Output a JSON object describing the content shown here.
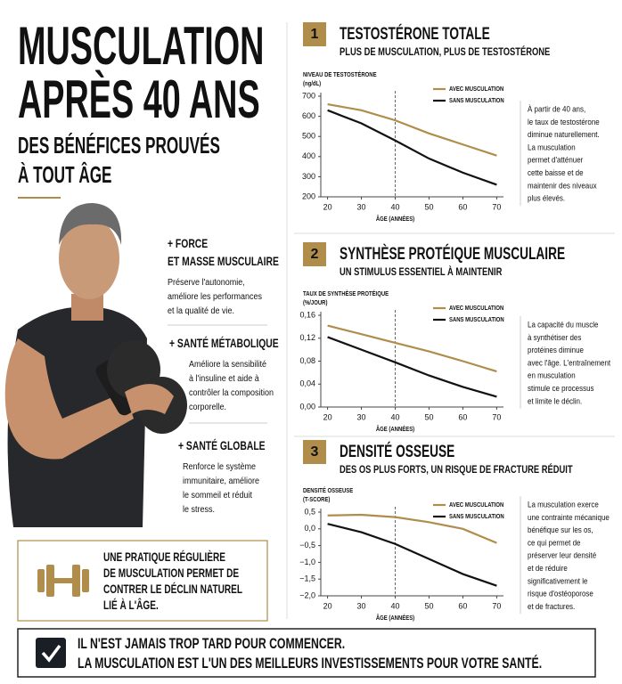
{
  "header": {
    "title_lines": [
      "MUSCULATION",
      "APRÈS 40 ANS"
    ],
    "subtitle_lines": [
      "DES BÉNÉFICES PROUVÉS",
      "À TOUT ÂGE"
    ]
  },
  "benefits": [
    {
      "title_lines": [
        "+ FORCE",
        "ET MASSE MUSCULAIRE"
      ],
      "text_lines": [
        "Préserve l'autonomie,",
        "améliore les performances",
        "et la qualité de vie."
      ]
    },
    {
      "title_lines": [
        "+ SANTÉ MÉTABOLIQUE"
      ],
      "text_lines": [
        "Améliore la sensibilité",
        "à l'insuline et aide à",
        "contrôler la composition",
        "corporelle."
      ]
    },
    {
      "title_lines": [
        "+ SANTÉ GLOBALE"
      ],
      "text_lines": [
        "Renforce le système",
        "immunitaire, améliore",
        "le sommeil et réduit",
        "le stress."
      ]
    }
  ],
  "callout": {
    "lines": [
      "UNE PRATIQUE RÉGULIÈRE",
      "DE MUSCULATION PERMET DE",
      "CONTRER LE DÉCLIN NATUREL",
      "LIÉ À L'ÂGE."
    ]
  },
  "banner": {
    "line1": "IL N'EST JAMAIS TROP TARD POUR COMMENCER.",
    "line2": "LA MUSCULATION EST L'UN DES MEILLEURS INVESTISSEMENTS POUR VOTRE SANTÉ."
  },
  "chart_data": [
    {
      "type": "line",
      "badge": "1",
      "title": "TESTOSTÉRONE TOTALE",
      "subtitle": "PLUS DE MUSCULATION, PLUS DE TESTOSTÉRONE",
      "ylabel": [
        "NIVEAU DE TESTOSTÉRONE",
        "(ng/dL)"
      ],
      "xlabel": "ÂGE (ANNÉES)",
      "x": [
        20,
        30,
        40,
        50,
        60,
        70
      ],
      "xlim": [
        18,
        72
      ],
      "xticks": [
        20,
        30,
        40,
        50,
        60,
        70
      ],
      "ylim": [
        200,
        700
      ],
      "yticks": [
        200,
        300,
        400,
        500,
        600,
        700
      ],
      "reference_x": 40,
      "series": [
        {
          "name": "AVEC MUSCULATION",
          "color": "#b08d4a",
          "values": [
            660,
            630,
            580,
            515,
            460,
            405
          ]
        },
        {
          "name": "SANS MUSCULATION",
          "color": "#111111",
          "values": [
            630,
            565,
            480,
            390,
            320,
            260
          ]
        }
      ],
      "note": [
        "À partir de 40 ans,",
        "le taux de testostérone",
        "diminue naturellement.",
        "La musculation",
        "permet d'atténuer",
        "cette baisse et de",
        "maintenir des niveaux",
        "plus élevés."
      ]
    },
    {
      "type": "line",
      "badge": "2",
      "title": "SYNTHÈSE PROTÉIQUE MUSCULAIRE",
      "subtitle": "UN STIMULUS ESSENTIEL À MAINTENIR",
      "ylabel": [
        "TAUX DE SYNTHÈSE PROTÉIQUE",
        "(%/JOUR)"
      ],
      "xlabel": "ÂGE (ANNÉES)",
      "x": [
        20,
        30,
        40,
        50,
        60,
        70
      ],
      "xlim": [
        18,
        72
      ],
      "xticks": [
        20,
        30,
        40,
        50,
        60,
        70
      ],
      "ylim": [
        0,
        0.16
      ],
      "yticks": [
        {
          "value": 0,
          "label": "0,00"
        },
        {
          "value": 0.04,
          "label": "0,04"
        },
        {
          "value": 0.08,
          "label": "0,08"
        },
        {
          "value": 0.12,
          "label": "0,12"
        },
        {
          "value": 0.16,
          "label": "0,16"
        }
      ],
      "reference_x": 40,
      "series": [
        {
          "name": "AVEC MUSCULATION",
          "color": "#b08d4a",
          "values": [
            0.142,
            0.127,
            0.112,
            0.097,
            0.08,
            0.062
          ]
        },
        {
          "name": "SANS MUSCULATION",
          "color": "#111111",
          "values": [
            0.122,
            0.1,
            0.078,
            0.055,
            0.035,
            0.018
          ]
        }
      ],
      "note": [
        "La capacité du muscle",
        "à synthétiser des",
        "protéines diminue",
        "avec l'âge. L'entraînement",
        "en musculation",
        "stimule ce processus",
        "et limite le déclin."
      ]
    },
    {
      "type": "line",
      "badge": "3",
      "title": "DENSITÉ OSSEUSE",
      "subtitle": "DES OS PLUS FORTS, UN RISQUE DE FRACTURE RÉDUIT",
      "ylabel": [
        "DENSITÉ OSSEUSE",
        "(T-SCORE)"
      ],
      "xlabel": "ÂGE (ANNÉES)",
      "x": [
        20,
        30,
        40,
        50,
        60,
        70
      ],
      "xlim": [
        18,
        72
      ],
      "xticks": [
        20,
        30,
        40,
        50,
        60,
        70
      ],
      "ylim": [
        -2,
        0.5
      ],
      "yticks": [
        {
          "value": -2,
          "label": "−2,0"
        },
        {
          "value": -1.5,
          "label": "−1,5"
        },
        {
          "value": -1,
          "label": "−1,0"
        },
        {
          "value": -0.5,
          "label": "−0,5"
        },
        {
          "value": 0,
          "label": "0,0"
        },
        {
          "value": 0.5,
          "label": "0,5"
        }
      ],
      "reference_x": 40,
      "series": [
        {
          "name": "AVEC MUSCULATION",
          "color": "#b08d4a",
          "values": [
            0.4,
            0.42,
            0.35,
            0.2,
            0,
            -0.42
          ]
        },
        {
          "name": "SANS MUSCULATION",
          "color": "#111111",
          "values": [
            0.15,
            -0.1,
            -0.45,
            -0.9,
            -1.35,
            -1.7
          ]
        }
      ],
      "note": [
        "La musculation exerce",
        "une contrainte mécanique",
        "bénéfique sur les os,",
        "ce qui permet de",
        "préserver leur densité",
        "et de réduire",
        "significativement le",
        "risque d'ostéoporose",
        "et de fractures."
      ]
    }
  ]
}
